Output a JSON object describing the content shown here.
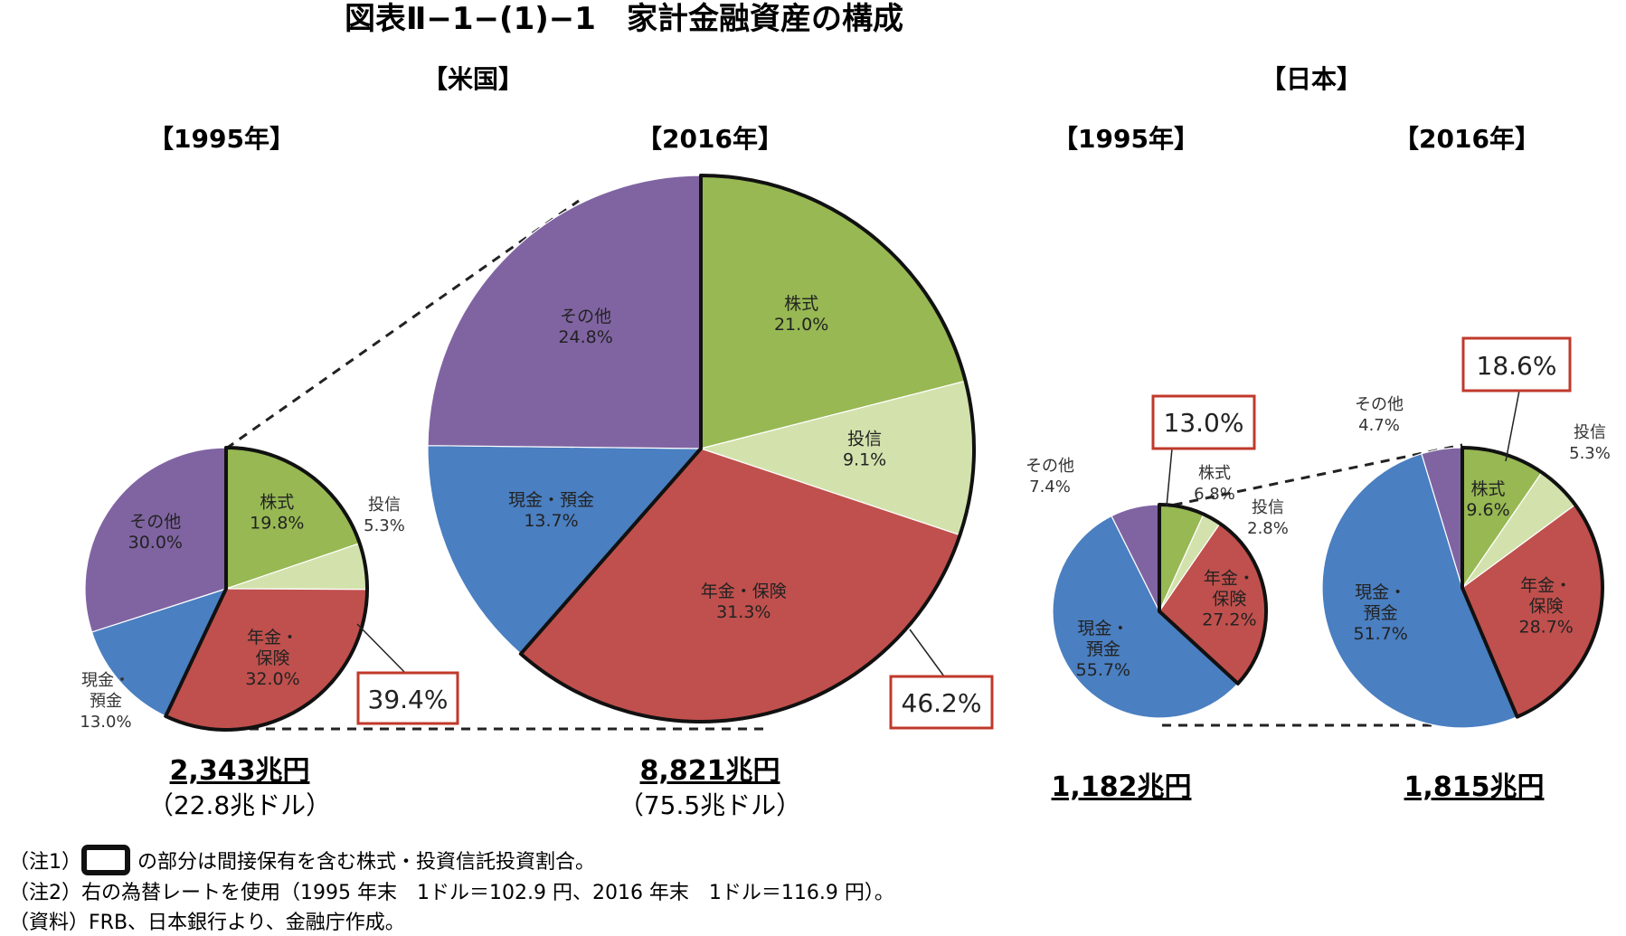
{
  "title": "図表Ⅱ−1−(1)−1　家計金融資産の構成",
  "regions": {
    "us": "【米国】",
    "jp": "【日本】"
  },
  "colors": {
    "株式": "#97b853",
    "投信": "#d3e2ad",
    "年金・保険": "#c0504d",
    "現金・預金": "#4a7fc1",
    "その他": "#8064a2",
    "highlight_box": "#c0392b"
  },
  "chart_data": [
    {
      "type": "pie",
      "id": "us1995",
      "year_label": "【1995年】",
      "slices": [
        {
          "label": "株式",
          "value": 19.8,
          "display": "19.8%"
        },
        {
          "label": "投信",
          "value": 5.3,
          "display": "5.3%"
        },
        {
          "label": "年金・保険",
          "value": 32.0,
          "display": "32.0%"
        },
        {
          "label": "現金・預金",
          "value": 13.0,
          "display": "13.0%"
        },
        {
          "label": "その他",
          "value": 30.0,
          "display": "30.0%"
        }
      ],
      "highlight": "39.4%",
      "total": "2,343兆円",
      "total_usd": "（22.8兆ドル）"
    },
    {
      "type": "pie",
      "id": "us2016",
      "year_label": "【2016年】",
      "slices": [
        {
          "label": "株式",
          "value": 21.0,
          "display": "21.0%"
        },
        {
          "label": "投信",
          "value": 9.1,
          "display": "9.1%"
        },
        {
          "label": "年金・保険",
          "value": 31.3,
          "display": "31.3%"
        },
        {
          "label": "現金・預金",
          "value": 13.7,
          "display": "13.7%"
        },
        {
          "label": "その他",
          "value": 24.8,
          "display": "24.8%"
        }
      ],
      "highlight": "46.2%",
      "total": "8,821兆円",
      "total_usd": "（75.5兆ドル）"
    },
    {
      "type": "pie",
      "id": "jp1995",
      "year_label": "【1995年】",
      "slices": [
        {
          "label": "株式",
          "value": 6.8,
          "display": "6.8%"
        },
        {
          "label": "投信",
          "value": 2.8,
          "display": "2.8%"
        },
        {
          "label": "年金・保険",
          "value": 27.2,
          "display": "27.2%"
        },
        {
          "label": "現金・預金",
          "value": 55.7,
          "display": "55.7%"
        },
        {
          "label": "その他",
          "value": 7.4,
          "display": "7.4%"
        }
      ],
      "highlight": "13.0%",
      "total": "1,182兆円"
    },
    {
      "type": "pie",
      "id": "jp2016",
      "year_label": "【2016年】",
      "slices": [
        {
          "label": "株式",
          "value": 9.6,
          "display": "9.6%"
        },
        {
          "label": "投信",
          "value": 5.3,
          "display": "5.3%"
        },
        {
          "label": "年金・保険",
          "value": 28.7,
          "display": "28.7%"
        },
        {
          "label": "現金・預金",
          "value": 51.7,
          "display": "51.7%"
        },
        {
          "label": "その他",
          "value": 4.7,
          "display": "4.7%"
        }
      ],
      "highlight": "18.6%",
      "total": "1,815兆円"
    }
  ],
  "notes": {
    "note1_prefix": "（注1）",
    "note1_text": "の部分は間接保有を含む株式・投資信託投資割合。",
    "note2": "（注2）右の為替レートを使用（1995 年末　1ドル＝102.9 円、2016 年末　1ドル＝116.9 円）。",
    "source": "（資料）FRB、日本銀行より、金融庁作成。"
  }
}
